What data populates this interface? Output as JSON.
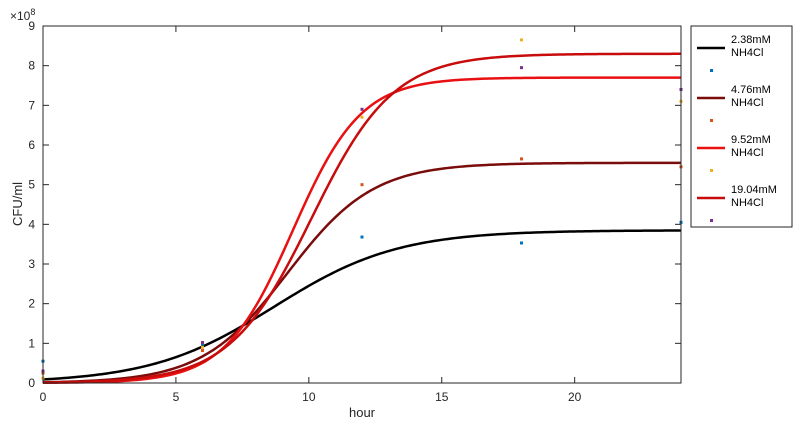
{
  "chart_data": {
    "type": "line",
    "title": "",
    "xlabel": "hour",
    "ylabel": "CFU/ml",
    "y_exponent_label": "×10",
    "y_exponent": "8",
    "xlim": [
      0,
      24
    ],
    "ylim": [
      0,
      9
    ],
    "x_ticks": [
      0,
      5,
      10,
      15,
      20
    ],
    "y_ticks": [
      0,
      1,
      2,
      3,
      4,
      5,
      6,
      7,
      8,
      9
    ],
    "grid": false,
    "legend_position": "outside-top-right",
    "series": [
      {
        "name": "2.38mM NH4Cl",
        "name_lines": [
          "2.38mM",
          "NH4Cl"
        ],
        "color": "#000000",
        "marker_color": "#0072bd",
        "fit": {
          "K": 3.85,
          "r": 0.43,
          "t0": 8.7
        },
        "points": [
          [
            0,
            0.55
          ],
          [
            6,
            0.98
          ],
          [
            12,
            3.68
          ],
          [
            18,
            3.53
          ],
          [
            24,
            4.05
          ]
        ]
      },
      {
        "name": "4.76mM NH4Cl",
        "name_lines": [
          "4.76mM",
          "NH4Cl"
        ],
        "color": "#7b0c0c",
        "marker_color": "#d95319",
        "fit": {
          "K": 5.55,
          "r": 0.62,
          "t0": 9.2
        },
        "points": [
          [
            0,
            0.25
          ],
          [
            6,
            0.82
          ],
          [
            12,
            5.0
          ],
          [
            18,
            5.65
          ],
          [
            24,
            5.45
          ]
        ]
      },
      {
        "name": "9.52mM NH4Cl",
        "name_lines": [
          "9.52mM",
          "NH4Cl"
        ],
        "color": "#e81010",
        "marker_color": "#edb120",
        "fit": {
          "K": 7.7,
          "r": 0.78,
          "t0": 9.4
        },
        "points": [
          [
            0,
            0.12
          ],
          [
            6,
            0.9
          ],
          [
            12,
            6.7
          ],
          [
            18,
            8.65
          ],
          [
            24,
            7.1
          ]
        ]
      },
      {
        "name": "19.04mM NH4Cl",
        "name_lines": [
          "19.04mM",
          "NH4Cl"
        ],
        "color": "#c80c0c",
        "marker_color": "#7e2f8e",
        "fit": {
          "K": 8.3,
          "r": 0.65,
          "t0": 10.1
        },
        "points": [
          [
            0,
            0.3
          ],
          [
            6,
            1.02
          ],
          [
            12,
            6.9
          ],
          [
            18,
            7.95
          ],
          [
            24,
            7.4
          ]
        ]
      }
    ]
  }
}
